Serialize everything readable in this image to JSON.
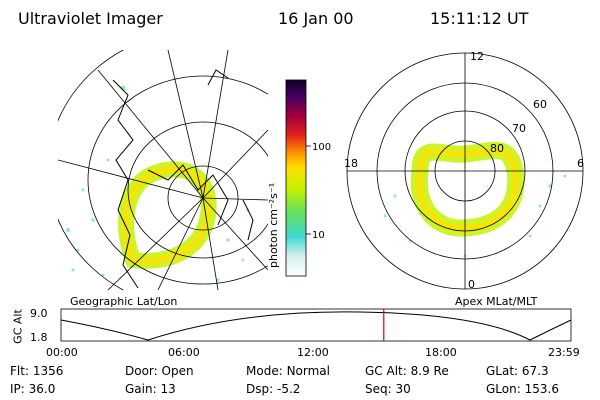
{
  "header": {
    "title": "Ultraviolet Imager",
    "date": "16 Jan 00",
    "time": "15:11:12 UT"
  },
  "colorbar": {
    "unit_label": "photon cm⁻²s⁻¹",
    "ticks": [
      "100",
      "10"
    ],
    "scale": "log"
  },
  "left_map": {
    "label": "Geographic Lat/Lon"
  },
  "right_map": {
    "label": "Apex MLat/MLT",
    "mlt_labels": {
      "top": "12",
      "left": "18",
      "right": "6",
      "bottom": "0"
    },
    "lat_labels": [
      "60",
      "70",
      "80"
    ]
  },
  "altitude_plot": {
    "ylabel": "GC Alt",
    "ymax": "9.0",
    "ymin": "1.8",
    "x_ticks": [
      "00:00",
      "06:00",
      "12:00",
      "18:00",
      "23:59"
    ],
    "marker_time_hours": 15.19
  },
  "status": {
    "row1": [
      {
        "key": "Flt:",
        "val": "1356"
      },
      {
        "key": "Door:",
        "val": "Open"
      },
      {
        "key": "Mode:",
        "val": "Normal"
      },
      {
        "key": "GC Alt:",
        "val": "8.9 Re"
      },
      {
        "key": "GLat:",
        "val": "67.3"
      }
    ],
    "row2": [
      {
        "key": "IP:",
        "val": "36.0"
      },
      {
        "key": "Gain:",
        "val": "13"
      },
      {
        "key": "Dsp:",
        "val": "-5.2"
      },
      {
        "key": "Seq:",
        "val": "30"
      },
      {
        "key": "GLon:",
        "val": "153.6"
      }
    ]
  },
  "colors": {
    "marker": "#e00000",
    "palette": [
      "#ffffff",
      "#d8f0f0",
      "#40d8d0",
      "#60e060",
      "#c8f000",
      "#ffe000",
      "#ff9000",
      "#e02020",
      "#a00040",
      "#400060",
      "#100020"
    ]
  }
}
